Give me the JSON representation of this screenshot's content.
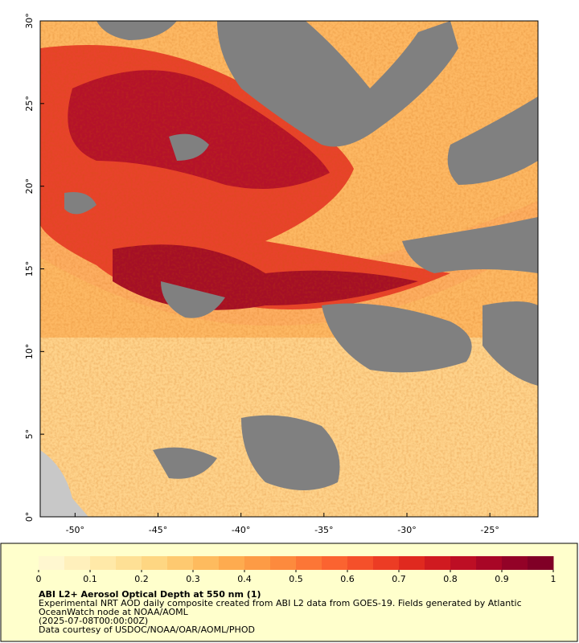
{
  "map": {
    "xlim": [
      -52.1,
      -22.1
    ],
    "ylim": [
      0,
      30
    ],
    "xticks": [
      {
        "value": -50,
        "label": "-50°"
      },
      {
        "value": -45,
        "label": "-45°"
      },
      {
        "value": -40,
        "label": "-40°"
      },
      {
        "value": -35,
        "label": "-35°"
      },
      {
        "value": -30,
        "label": "-30°"
      },
      {
        "value": -25,
        "label": "-25°"
      }
    ],
    "yticks": [
      {
        "value": 0,
        "label": "0°"
      },
      {
        "value": 5,
        "label": "5°"
      },
      {
        "value": 10,
        "label": "10°"
      },
      {
        "value": 15,
        "label": "15°"
      },
      {
        "value": 20,
        "label": "20°"
      },
      {
        "value": 25,
        "label": "25°"
      },
      {
        "value": 30,
        "label": "30°"
      }
    ]
  },
  "colorbar": {
    "lim": [
      0,
      1
    ],
    "ticks": [
      0,
      0.1,
      0.2,
      0.3,
      0.4,
      0.5,
      0.6,
      0.7,
      0.8,
      0.9,
      1
    ],
    "colors": [
      "#fff7d0",
      "#fff0bc",
      "#ffe9a8",
      "#fee095",
      "#fed682",
      "#fec970",
      "#febb5e",
      "#feab4f",
      "#fd9b45",
      "#fd8a3d",
      "#fc7636",
      "#fb6330",
      "#f5502a",
      "#ec3c24",
      "#e0291f",
      "#d01a20",
      "#bd0e24",
      "#a80626",
      "#930227",
      "#800026"
    ],
    "title": "ABI L2+ Aerosol Optical Depth at 550 nm (1)",
    "lines": [
      "Experimental NRT AOD daily composite created from ABI L2 data from GOES-19. Fields generated by Atlantic",
      "OceanWatch node at NOAA/AOML",
      "(2025-07-08T00:00:00Z)",
      "Data courtesy of USDOC/NOAA/OAR/AOML/PHOD"
    ]
  }
}
